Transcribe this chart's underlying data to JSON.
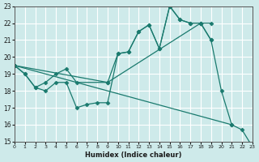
{
  "xlabel": "Humidex (Indice chaleur)",
  "xlim": [
    0,
    23
  ],
  "ylim": [
    15,
    23
  ],
  "xticks": [
    0,
    1,
    2,
    3,
    4,
    5,
    6,
    7,
    8,
    9,
    10,
    11,
    12,
    13,
    14,
    15,
    16,
    17,
    18,
    19,
    20,
    21,
    22,
    23
  ],
  "yticks": [
    15,
    16,
    17,
    18,
    19,
    20,
    21,
    22,
    23
  ],
  "background_color": "#ceeaea",
  "grid_color": "#ffffff",
  "line_color": "#1a7a6e",
  "line_segments": [
    {
      "x": [
        0,
        1,
        2,
        3,
        4,
        5,
        6,
        7,
        8,
        9,
        10,
        11,
        12,
        13,
        14,
        15,
        16,
        17,
        18,
        19,
        20,
        21
      ],
      "y": [
        19.5,
        19.0,
        18.2,
        18.0,
        18.5,
        18.5,
        17.0,
        17.2,
        17.3,
        17.3,
        20.2,
        20.3,
        21.5,
        21.9,
        20.5,
        23.0,
        22.2,
        22.0,
        22.0,
        21.0,
        18.0,
        16.0
      ]
    },
    {
      "x": [
        0,
        1,
        2,
        3,
        4,
        5,
        6,
        9,
        18,
        19
      ],
      "y": [
        19.5,
        19.0,
        18.2,
        18.5,
        19.0,
        19.3,
        18.5,
        18.5,
        22.0,
        22.0
      ]
    },
    {
      "x": [
        0,
        9,
        10,
        11,
        12,
        13,
        14,
        15,
        16,
        17,
        18,
        19
      ],
      "y": [
        19.5,
        18.5,
        20.2,
        20.3,
        21.5,
        21.9,
        20.5,
        23.0,
        22.2,
        22.0,
        22.0,
        21.0
      ]
    },
    {
      "x": [
        0,
        21,
        22,
        23
      ],
      "y": [
        19.5,
        16.0,
        15.7,
        14.7
      ]
    }
  ]
}
